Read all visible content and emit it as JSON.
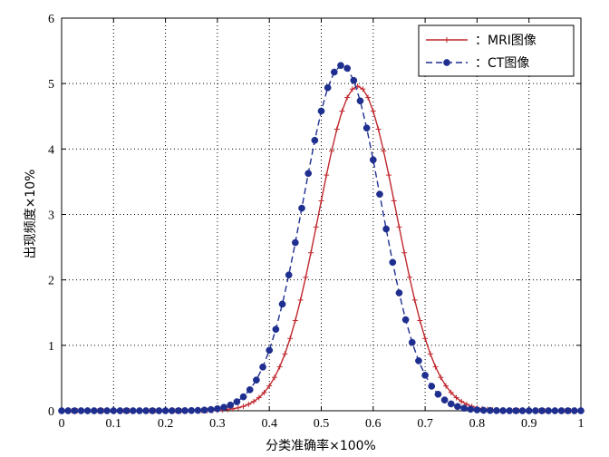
{
  "chart_data": {
    "type": "line",
    "title": "",
    "xlabel": "分类准确率×100%",
    "ylabel": "出现频度×10%",
    "xlim": [
      0,
      1
    ],
    "ylim": [
      0,
      6
    ],
    "xticks": [
      "0",
      "0.1",
      "0.2",
      "0.3",
      "0.4",
      "0.5",
      "0.6",
      "0.7",
      "0.8",
      "0.9",
      "1"
    ],
    "yticks": [
      "0",
      "1",
      "2",
      "3",
      "4",
      "5",
      "6"
    ],
    "grid": true,
    "legend_position": "top-right",
    "series": [
      {
        "name": "：MRI图像",
        "color": "#c0272d",
        "line_style": "solid",
        "marker": "plus",
        "peak_x": 0.57,
        "peak_y": 4.96,
        "spread": 0.075,
        "x_start": 0,
        "x_end": 1,
        "x_step": 0.01
      },
      {
        "name": "：CT图像",
        "color": "#1f2f8f",
        "line_style": "dashed",
        "marker": "circle",
        "peak_x": 0.54,
        "peak_y": 5.28,
        "spread": 0.075,
        "x_start": 0,
        "x_end": 1,
        "x_step": 0.0125
      }
    ]
  }
}
